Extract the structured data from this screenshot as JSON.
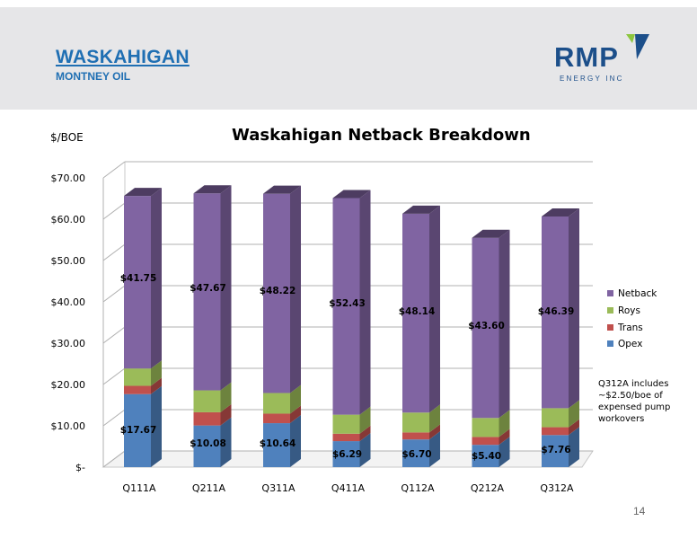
{
  "header": {
    "title": "WASKAHIGAN",
    "subtitle": "MONTNEY OIL",
    "logo_text": "RMP",
    "logo_subtext": "ENERGY INC"
  },
  "chart_data": {
    "type": "bar",
    "stacked": true,
    "title": "Waskahigan Netback Breakdown",
    "ylabel": "$/BOE",
    "xlabel": "",
    "ylim": [
      0,
      70
    ],
    "yticks": [
      "$-",
      "$10.00",
      "$20.00",
      "$30.00",
      "$40.00",
      "$50.00",
      "$60.00",
      "$70.00"
    ],
    "ytick_values": [
      0,
      10,
      20,
      30,
      40,
      50,
      60,
      70
    ],
    "categories": [
      "Q111A",
      "Q211A",
      "Q311A",
      "Q411A",
      "Q112A",
      "Q212A",
      "Q312A"
    ],
    "series": [
      {
        "name": "Opex",
        "color": "#4f81bd",
        "values": [
          17.67,
          10.08,
          10.64,
          6.29,
          6.7,
          5.4,
          7.76
        ],
        "labels": [
          "$17.67",
          "$10.08",
          "$10.64",
          "$6.29",
          "$6.70",
          "$5.40",
          "$7.76"
        ]
      },
      {
        "name": "Trans",
        "color": "#c0504d",
        "values": [
          2.0,
          3.2,
          2.3,
          1.8,
          1.7,
          1.9,
          1.9
        ]
      },
      {
        "name": "Roys",
        "color": "#9bbb59",
        "values": [
          4.2,
          5.3,
          5.0,
          4.6,
          4.8,
          4.6,
          4.6
        ]
      },
      {
        "name": "Netback",
        "color": "#8064a2",
        "values": [
          41.75,
          47.67,
          48.22,
          52.43,
          48.14,
          43.6,
          46.39
        ],
        "labels": [
          "$41.75",
          "$47.67",
          "$48.22",
          "$52.43",
          "$48.14",
          "$43.60",
          "$46.39"
        ]
      }
    ],
    "legend_order": [
      "Netback",
      "Roys",
      "Trans",
      "Opex"
    ],
    "legend_position": "right",
    "grid": true,
    "style": "3d"
  },
  "note": "Q312A includes ~$2.50/boe of expensed pump workovers",
  "page_number": "14"
}
